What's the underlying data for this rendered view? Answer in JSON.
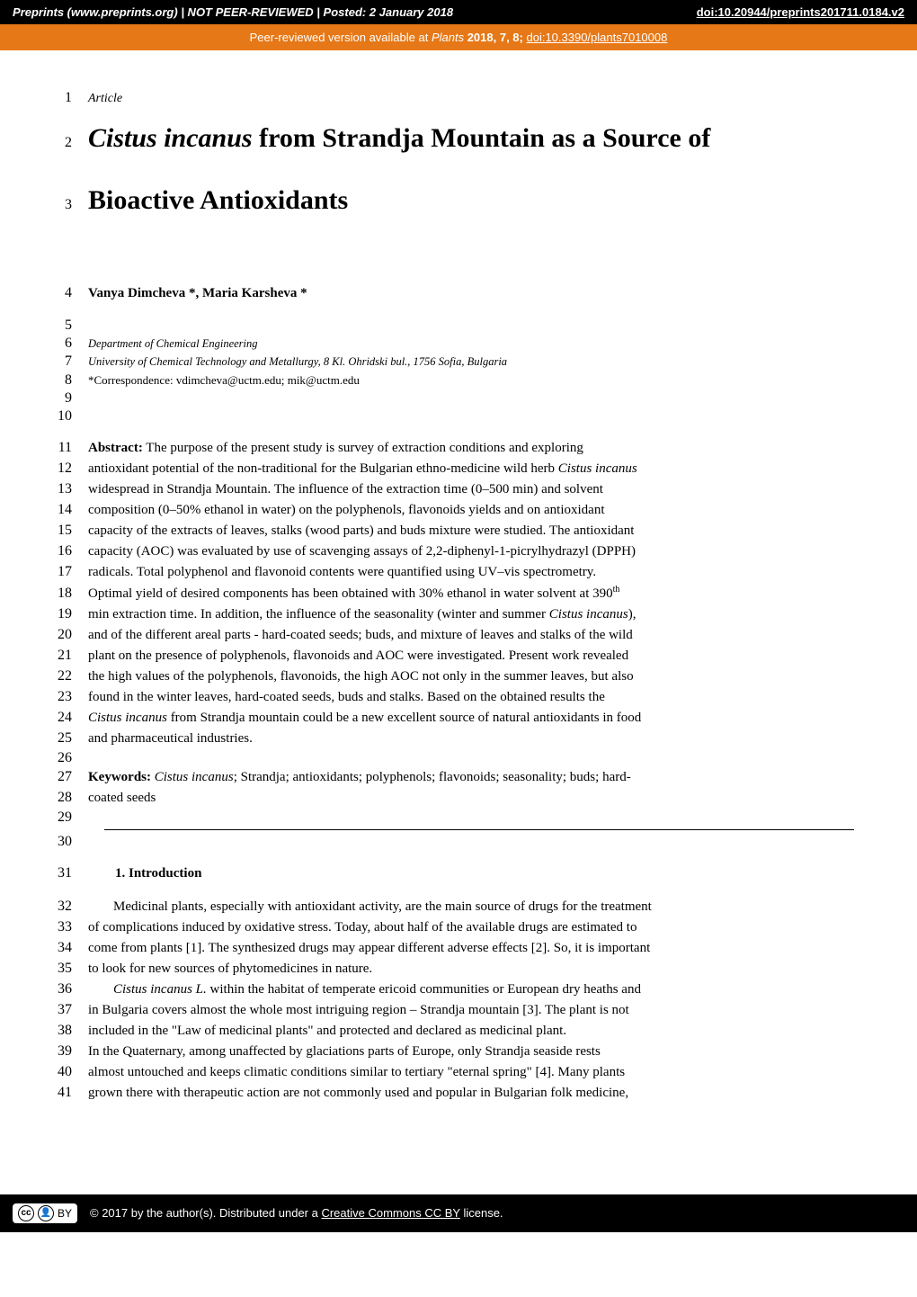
{
  "top_banner": {
    "left": "Preprints (www.preprints.org)  |  NOT PEER-REVIEWED  |  Posted: 2 January 2018",
    "doi_label": "doi:10.20944/preprints201711.0184.v2"
  },
  "orange_banner": {
    "prefix": "Peer-reviewed version available at ",
    "journal": "Plants",
    "year_vol": " 2018, 7, 8; ",
    "doi_link": "doi:10.3390/plants7010008"
  },
  "colors": {
    "top_bg": "#000000",
    "orange_bg": "#e67817",
    "text": "#000000",
    "white": "#ffffff"
  },
  "lines": {
    "l1": "Article",
    "l2_italic": "Cistus incanus",
    "l2_rest": " from Strandja Mountain as a Source of",
    "l3": "Bioactive Antioxidants",
    "l4": "Vanya Dimcheva *, Maria Karsheva *",
    "l6": "Department of Chemical Engineering",
    "l7": "University of Chemical Technology and Metallurgy, 8 Kl. Ohridski bul., 1756 Sofia, Bulgaria",
    "l8": "*Correspondence:  vdimcheva@uctm.edu; mik@uctm.edu",
    "l11_b": "Abstract:",
    "l11_r": " The purpose of the present study is survey of extraction conditions and exploring",
    "l12_a": "antioxidant potential of the non-traditional for the Bulgarian ethno-medicine wild herb ",
    "l12_i": "Cistus incanus",
    "l13": "widespread in Strandja Mountain. The influence of the extraction time (0–500 min) and solvent",
    "l14": "composition (0–50% ethanol in water) on the polyphenols, flavonoids yields and on antioxidant",
    "l15": "capacity of the extracts of leaves, stalks (wood parts) and buds mixture were studied. The antioxidant",
    "l16": "capacity (AOC) was evaluated by use of scavenging assays of 2,2-diphenyl-1-picrylhydrazyl (DPPH)",
    "l17": "radicals. Total polyphenol and flavonoid contents were quantified using UV–vis spectrometry.",
    "l18_a": "Optimal yield of desired components has been obtained with 30% ethanol in water solvent at 390",
    "l18_sup": "th",
    "l19_a": "min extraction time. In addition, the influence of the seasonality (winter and summer ",
    "l19_i": "Cistus incanus",
    "l19_b": "),",
    "l20": "and of the different areal parts - hard-coated seeds; buds, and mixture of leaves and stalks of the wild",
    "l21": "plant on the presence of polyphenols, flavonoids and AOC were investigated. Present work revealed",
    "l22": "the high values of the polyphenols, flavonoids, the high AOC not only in the summer leaves, but also",
    "l23": "found in the winter leaves, hard-coated seeds, buds and stalks. Based on the obtained results the",
    "l24_i": "Cistus incanus",
    "l24_r": " from Strandja mountain could be a new excellent source of natural antioxidants in food",
    "l25": "and pharmaceutical industries.",
    "l27_b": "Keywords:",
    "l27_i": " Cistus incanus",
    "l27_r": "; Strandja; antioxidants; polyphenols; flavonoids; seasonality; buds; hard-",
    "l28": "coated seeds",
    "l31": "1.   Introduction",
    "l32": "Medicinal plants, especially with antioxidant activity, are the main source of drugs for the treatment",
    "l33": "of complications induced by oxidative stress. Today, about half of the available drugs are estimated to",
    "l34": "come from plants [1]. The synthesized drugs may appear different adverse effects [2]. So, it is important",
    "l35": "to look for new sources of phytomedicines in nature.",
    "l36_i": "Cistus incanus L.",
    "l36_r": " within the habitat of temperate ericoid communities or European dry heaths and",
    "l37": "in Bulgaria covers almost the whole most intriguing region – Strandja mountain [3]. The plant is not",
    "l38": "included in the \"Law of medicinal plants\" and protected and declared as medicinal plant.",
    "l39": " In the Quaternary, among unaffected by glaciations parts of Europe, only Strandja seaside rests",
    "l40": "almost untouched and keeps climatic conditions similar to tertiary \"eternal spring\" [4]. Many plants",
    "l41": "grown there with therapeutic action are not commonly used and popular in Bulgarian folk medicine,"
  },
  "footer": {
    "cc": "cc",
    "by": "BY",
    "text_prefix": "©  2017 by the author(s). Distributed under a ",
    "link": "Creative Commons CC BY",
    "text_suffix": " license."
  }
}
